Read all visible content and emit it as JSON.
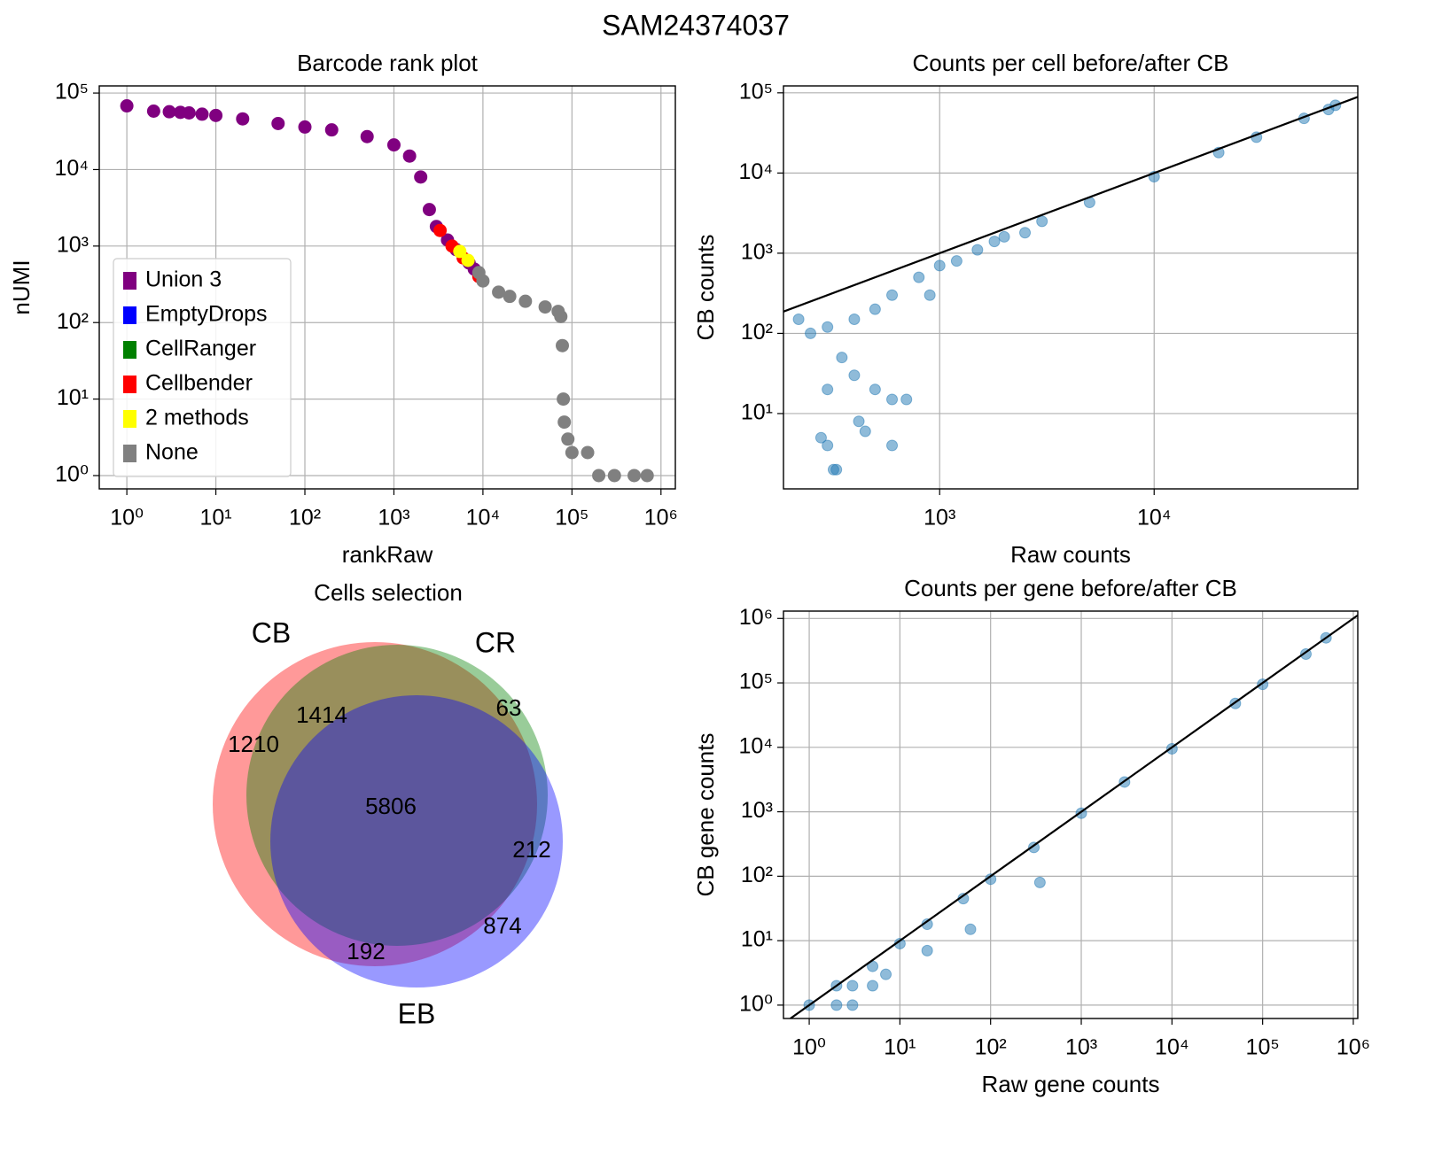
{
  "title": "SAM24374037",
  "chart_data": [
    {
      "type": "scatter",
      "title": "Barcode rank plot",
      "x_label": "rankRaw",
      "y_label": "nUMI",
      "xscale": "log",
      "yscale": "log",
      "grid": true,
      "legend": "lower left",
      "xlim": [
        0.49,
        1450000
      ],
      "ylim": [
        0.67,
        124000
      ],
      "xticks": [
        {
          "value": 1,
          "label": "10⁰"
        },
        {
          "value": 10,
          "label": "10¹"
        },
        {
          "value": 100,
          "label": "10²"
        },
        {
          "value": 1000,
          "label": "10³"
        },
        {
          "value": 10000,
          "label": "10⁴"
        },
        {
          "value": 100000,
          "label": "10⁵"
        },
        {
          "value": 1000000,
          "label": "10⁶"
        }
      ],
      "yticks": [
        {
          "value": 1,
          "label": "10⁰"
        },
        {
          "value": 10,
          "label": "10¹"
        },
        {
          "value": 100,
          "label": "10²"
        },
        {
          "value": 1000,
          "label": "10³"
        },
        {
          "value": 10000,
          "label": "10⁴"
        },
        {
          "value": 100000,
          "label": "10⁵"
        }
      ],
      "series": [
        {
          "name": "Union 3",
          "color": "#800080",
          "x": [
            1,
            2,
            3,
            4,
            5,
            7,
            10,
            20,
            50,
            100,
            200,
            500,
            1000,
            1500,
            2000,
            2500,
            3000,
            4000,
            5000,
            7000,
            8000
          ],
          "values": [
            68000,
            58000,
            57000,
            56000,
            55000,
            53000,
            51000,
            46000,
            40000,
            36000,
            33000,
            27000,
            21000,
            15000,
            8000,
            3000,
            1800,
            1200,
            900,
            600,
            500
          ]
        },
        {
          "name": "EmptyDrops",
          "color": "#0000ff",
          "x": [],
          "values": []
        },
        {
          "name": "CellRanger",
          "color": "#008000",
          "x": [],
          "values": []
        },
        {
          "name": "Cellbender",
          "color": "#ff0000",
          "x": [
            3300,
            4500,
            6000,
            9000
          ],
          "values": [
            1600,
            1000,
            700,
            400
          ]
        },
        {
          "name": "2 methods",
          "color": "#ffff00",
          "x": [
            5500,
            6800
          ],
          "values": [
            850,
            650
          ]
        },
        {
          "name": "None",
          "color": "#808080",
          "x": [
            9000,
            10000,
            15000,
            20000,
            30000,
            50000,
            70000,
            75000,
            78000,
            80000,
            82000,
            90000,
            100000,
            150000,
            200000,
            300000,
            500000,
            700000
          ],
          "values": [
            450,
            350,
            250,
            220,
            190,
            160,
            140,
            120,
            50,
            10,
            5,
            3,
            2,
            2,
            1,
            1,
            1,
            1
          ]
        }
      ]
    },
    {
      "type": "scatter",
      "title": "Counts per cell before/after CB",
      "x_label": "Raw counts",
      "y_label": "CB counts",
      "xscale": "log",
      "yscale": "log",
      "grid": true,
      "diagonal": true,
      "xlim": [
        187,
        89000
      ],
      "ylim": [
        1.15,
        122000
      ],
      "xticks": [
        {
          "value": 1000,
          "label": "10³"
        },
        {
          "value": 10000,
          "label": "10⁴"
        }
      ],
      "yticks": [
        {
          "value": 10,
          "label": "10¹"
        },
        {
          "value": 100,
          "label": "10²"
        },
        {
          "value": 1000,
          "label": "10³"
        },
        {
          "value": 10000,
          "label": "10⁴"
        },
        {
          "value": 100000,
          "label": "10⁵"
        }
      ],
      "series": [
        {
          "color": "#1f77b4",
          "x": [
            70000,
            65000,
            50000,
            30000,
            20000,
            10000,
            5000,
            3000,
            2000,
            1500,
            1800,
            2500,
            1000,
            1200,
            900,
            800,
            600,
            500,
            400,
            300,
            250,
            220,
            350,
            400,
            500,
            600,
            300,
            280,
            300,
            320,
            330,
            420,
            600,
            450,
            700
          ],
          "values": [
            70000,
            62000,
            48000,
            28000,
            18000,
            9000,
            4300,
            2500,
            1600,
            1100,
            1400,
            1800,
            700,
            800,
            300,
            500,
            300,
            200,
            150,
            120,
            100,
            150,
            50,
            30,
            20,
            15,
            20,
            5,
            4,
            2,
            2,
            8,
            4,
            6,
            15
          ]
        }
      ]
    },
    {
      "type": "venn",
      "title": "Cells selection",
      "sets": [
        {
          "name": "CB",
          "color": "#ff0000"
        },
        {
          "name": "CR",
          "color": "#008000"
        },
        {
          "name": "EB",
          "color": "#0000ff"
        }
      ],
      "regions": [
        {
          "sets": [
            "CB"
          ],
          "value": 1210
        },
        {
          "sets": [
            "CB",
            "CR"
          ],
          "value": 1414
        },
        {
          "sets": [
            "CR"
          ],
          "value": 63
        },
        {
          "sets": [
            "CB",
            "CR",
            "EB"
          ],
          "value": 5806
        },
        {
          "sets": [
            "CR",
            "EB"
          ],
          "value": 212
        },
        {
          "sets": [
            "EB"
          ],
          "value": 874
        },
        {
          "sets": [
            "CB",
            "EB"
          ],
          "value": 192
        }
      ]
    },
    {
      "type": "scatter",
      "title": "Counts per gene before/after CB",
      "x_label": "Raw gene counts",
      "y_label": "CB gene counts",
      "xscale": "log",
      "yscale": "log",
      "grid": true,
      "diagonal": true,
      "xlim": [
        0.52,
        1120000
      ],
      "ylim": [
        0.62,
        1300000
      ],
      "xticks": [
        {
          "value": 1,
          "label": "10⁰"
        },
        {
          "value": 10,
          "label": "10¹"
        },
        {
          "value": 100,
          "label": "10²"
        },
        {
          "value": 1000,
          "label": "10³"
        },
        {
          "value": 10000,
          "label": "10⁴"
        },
        {
          "value": 100000,
          "label": "10⁵"
        },
        {
          "value": 1000000,
          "label": "10⁶"
        }
      ],
      "yticks": [
        {
          "value": 1,
          "label": "10⁰"
        },
        {
          "value": 10,
          "label": "10¹"
        },
        {
          "value": 100,
          "label": "10²"
        },
        {
          "value": 1000,
          "label": "10³"
        },
        {
          "value": 10000,
          "label": "10⁴"
        },
        {
          "value": 100000,
          "label": "10⁵"
        },
        {
          "value": 1000000,
          "label": "10⁶"
        }
      ],
      "series": [
        {
          "color": "#1f77b4",
          "x": [
            1,
            2,
            2,
            3,
            3,
            5,
            5,
            7,
            10,
            20,
            20,
            50,
            60,
            100,
            300,
            350,
            1000,
            3000,
            10000,
            50000,
            100000,
            300000,
            500000
          ],
          "values": [
            1,
            2,
            1,
            1,
            2,
            4,
            2,
            3,
            9,
            18,
            7,
            45,
            15,
            90,
            280,
            80,
            950,
            2900,
            9500,
            48000,
            95000,
            280000,
            500000
          ]
        }
      ]
    }
  ]
}
